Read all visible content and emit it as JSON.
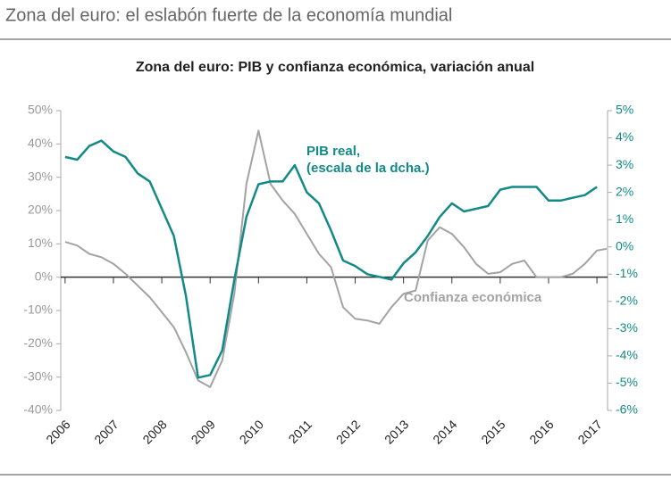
{
  "header": "Zona del euro: el eslabón fuerte de la economía mundial",
  "chart_data": {
    "type": "line",
    "title": "Zona del euro: PIB y confianza económica, variación anual",
    "annotations": [
      "PIB real,",
      "(escala de la dcha.)",
      "Confianza económica"
    ],
    "xlim": [
      2005.91,
      2017.22
    ],
    "xticks": [
      2006,
      2007,
      2008,
      2009,
      2010,
      2011,
      2012,
      2013,
      2014,
      2015,
      2016,
      2017
    ],
    "ylim": [
      -40,
      50
    ],
    "yticks": [
      {
        "value": -40,
        "label": "-40%"
      },
      {
        "value": -30,
        "label": "-30%"
      },
      {
        "value": -20,
        "label": "-20%"
      },
      {
        "value": -10,
        "label": "-10%"
      },
      {
        "value": 0,
        "label": "0%"
      },
      {
        "value": 10,
        "label": "10%"
      },
      {
        "value": 20,
        "label": "20%"
      },
      {
        "value": 30,
        "label": "30%"
      },
      {
        "value": 40,
        "label": "40%"
      },
      {
        "value": 50,
        "label": "50%"
      }
    ],
    "y2lim": [
      -6,
      5
    ],
    "y2ticks": [
      {
        "value": -6,
        "label": "-6%"
      },
      {
        "value": -5,
        "label": "-5%"
      },
      {
        "value": -4,
        "label": "-4%"
      },
      {
        "value": -3,
        "label": "-3%"
      },
      {
        "value": -2,
        "label": "-2%"
      },
      {
        "value": -1,
        "label": "-1%"
      },
      {
        "value": 0,
        "label": "0%"
      },
      {
        "value": 1,
        "label": "1%"
      },
      {
        "value": 2,
        "label": "2%"
      },
      {
        "value": 3,
        "label": "3%"
      },
      {
        "value": 4,
        "label": "4%"
      },
      {
        "value": 5,
        "label": "5%"
      }
    ],
    "series": [
      {
        "name": "PIB real",
        "color": "#138a87",
        "axis": "y2",
        "x": [
          2006,
          2006.25,
          2006.5,
          2006.75,
          2007,
          2007.25,
          2007.5,
          2007.75,
          2008,
          2008.25,
          2008.5,
          2008.75,
          2009,
          2009.25,
          2009.5,
          2009.75,
          2010,
          2010.25,
          2010.5,
          2010.75,
          2011,
          2011.25,
          2011.5,
          2011.75,
          2012,
          2012.25,
          2012.5,
          2012.75,
          2013,
          2013.25,
          2013.5,
          2013.75,
          2014,
          2014.25,
          2014.5,
          2014.75,
          2015,
          2015.25,
          2015.5,
          2015.75,
          2016,
          2016.25,
          2016.5,
          2016.75,
          2017
        ],
        "values": [
          3.3,
          3.2,
          3.7,
          3.9,
          3.5,
          3.3,
          2.7,
          2.4,
          1.4,
          0.4,
          -1.8,
          -4.8,
          -4.7,
          -3.8,
          -1.2,
          1.1,
          2.3,
          2.4,
          2.4,
          3.0,
          2.0,
          1.6,
          0.6,
          -0.5,
          -0.7,
          -1.0,
          -1.1,
          -1.2,
          -0.6,
          -0.2,
          0.4,
          1.1,
          1.6,
          1.3,
          1.4,
          1.5,
          2.1,
          2.2,
          2.2,
          2.2,
          1.7,
          1.7,
          1.8,
          1.9,
          2.2
        ]
      },
      {
        "name": "Confianza económica",
        "color": "#a3a3a3",
        "axis": "y",
        "x": [
          2006,
          2006.25,
          2006.5,
          2006.75,
          2007,
          2007.25,
          2007.5,
          2007.75,
          2008,
          2008.25,
          2008.5,
          2008.75,
          2009,
          2009.25,
          2009.5,
          2009.75,
          2010,
          2010.25,
          2010.5,
          2010.75,
          2011,
          2011.25,
          2011.5,
          2011.75,
          2012,
          2012.25,
          2012.5,
          2012.75,
          2013,
          2013.25,
          2013.5,
          2013.75,
          2014,
          2014.25,
          2014.5,
          2014.75,
          2015,
          2015.25,
          2015.5,
          2015.75,
          2016,
          2016.25,
          2016.5,
          2016.75,
          2017,
          2017.2
        ],
        "values": [
          10.6,
          9.5,
          7,
          6,
          4,
          1,
          -2.5,
          -6,
          -10.5,
          -15,
          -22.5,
          -31,
          -33,
          -25,
          -5,
          28,
          44,
          28,
          23,
          19,
          13,
          7,
          3,
          -9,
          -12.5,
          -13,
          -14,
          -9,
          -5,
          -4,
          11,
          15,
          13,
          9,
          4,
          1,
          1.5,
          4,
          5,
          0,
          0,
          0,
          1,
          4,
          8,
          8.5
        ]
      }
    ]
  }
}
